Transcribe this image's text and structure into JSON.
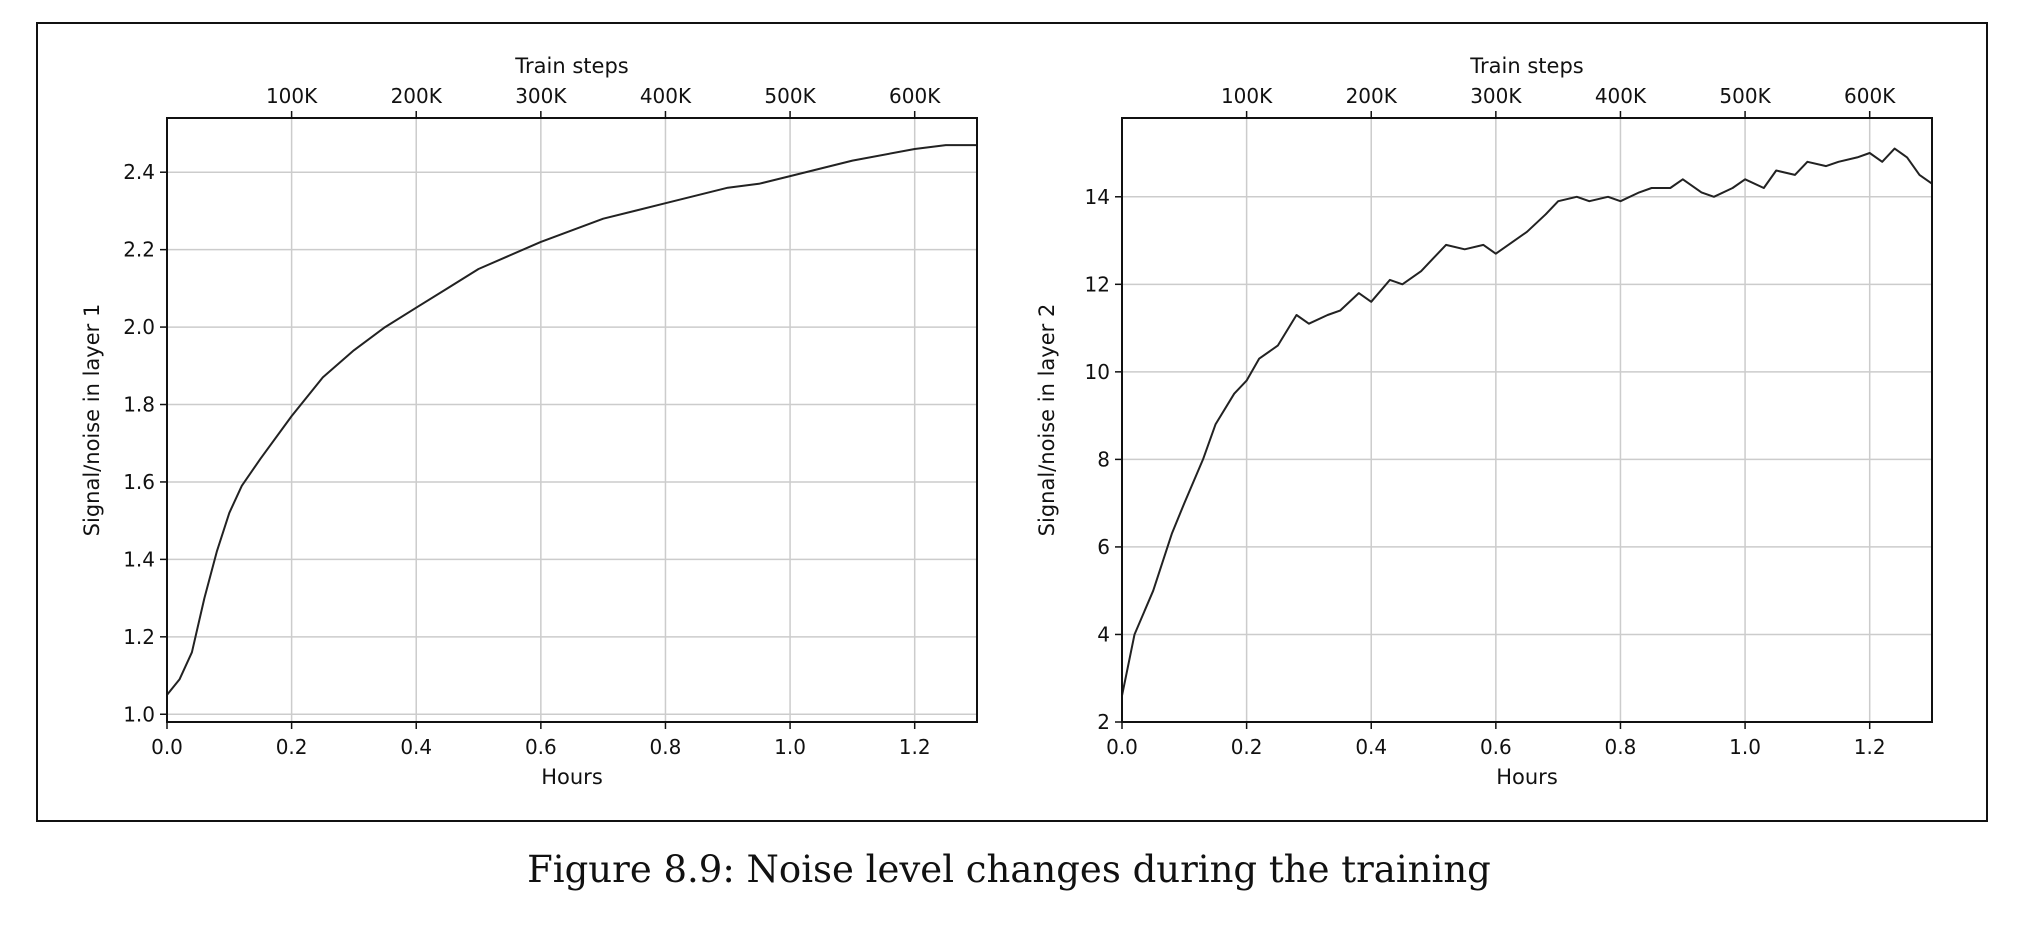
{
  "figure": {
    "caption": "Figure 8.9: Noise level changes during the training"
  },
  "chart_data": [
    {
      "type": "line",
      "xlabel": "Hours",
      "ylabel": "Signal/noise in layer 1",
      "top_xlabel": "Train steps",
      "xlim": [
        0.0,
        1.3
      ],
      "ylim": [
        0.98,
        2.54
      ],
      "grid": true,
      "xticks": [
        0.0,
        0.2,
        0.4,
        0.6,
        0.8,
        1.0,
        1.2
      ],
      "xtick_labels": [
        "0.0",
        "0.2",
        "0.4",
        "0.6",
        "0.8",
        "1.0",
        "1.2"
      ],
      "yticks": [
        1.0,
        1.2,
        1.4,
        1.6,
        1.8,
        2.0,
        2.2,
        2.4
      ],
      "ytick_labels": [
        "1.0",
        "1.2",
        "1.4",
        "1.6",
        "1.8",
        "2.0",
        "2.2",
        "2.4"
      ],
      "top_xticks": [
        0.2,
        0.4,
        0.6,
        0.8,
        1.0,
        1.2
      ],
      "top_xtick_labels": [
        "100K",
        "200K",
        "300K",
        "400K",
        "500K",
        "600K"
      ],
      "color": "#222222",
      "series": [
        {
          "x": [
            0.0,
            0.02,
            0.04,
            0.06,
            0.08,
            0.1,
            0.12,
            0.15,
            0.2,
            0.25,
            0.3,
            0.35,
            0.4,
            0.45,
            0.5,
            0.6,
            0.7,
            0.8,
            0.9,
            0.95,
            1.0,
            1.1,
            1.2,
            1.25,
            1.3
          ],
          "y": [
            1.05,
            1.09,
            1.16,
            1.3,
            1.42,
            1.52,
            1.59,
            1.66,
            1.77,
            1.87,
            1.94,
            2.0,
            2.05,
            2.1,
            2.15,
            2.22,
            2.28,
            2.32,
            2.36,
            2.37,
            2.39,
            2.43,
            2.46,
            2.47,
            2.47
          ]
        }
      ]
    },
    {
      "type": "line",
      "xlabel": "Hours",
      "ylabel": "Signal/noise in layer 2",
      "top_xlabel": "Train steps",
      "xlim": [
        0.0,
        1.3
      ],
      "ylim": [
        2.0,
        15.8
      ],
      "grid": true,
      "xticks": [
        0.0,
        0.2,
        0.4,
        0.6,
        0.8,
        1.0,
        1.2
      ],
      "xtick_labels": [
        "0.0",
        "0.2",
        "0.4",
        "0.6",
        "0.8",
        "1.0",
        "1.2"
      ],
      "yticks": [
        2,
        4,
        6,
        8,
        10,
        12,
        14
      ],
      "ytick_labels": [
        "2",
        "4",
        "6",
        "8",
        "10",
        "12",
        "14"
      ],
      "top_xticks": [
        0.2,
        0.4,
        0.6,
        0.8,
        1.0,
        1.2
      ],
      "top_xtick_labels": [
        "100K",
        "200K",
        "300K",
        "400K",
        "500K",
        "600K"
      ],
      "color": "#222222",
      "series": [
        {
          "x": [
            0.0,
            0.02,
            0.05,
            0.08,
            0.1,
            0.13,
            0.15,
            0.18,
            0.2,
            0.22,
            0.25,
            0.28,
            0.3,
            0.33,
            0.35,
            0.38,
            0.4,
            0.43,
            0.45,
            0.48,
            0.5,
            0.52,
            0.55,
            0.58,
            0.6,
            0.63,
            0.65,
            0.68,
            0.7,
            0.73,
            0.75,
            0.78,
            0.8,
            0.83,
            0.85,
            0.88,
            0.9,
            0.93,
            0.95,
            0.98,
            1.0,
            1.03,
            1.05,
            1.08,
            1.1,
            1.13,
            1.15,
            1.18,
            1.2,
            1.22,
            1.24,
            1.26,
            1.28,
            1.3
          ],
          "y": [
            2.6,
            4.0,
            5.0,
            6.3,
            7.0,
            8.0,
            8.8,
            9.5,
            9.8,
            10.3,
            10.6,
            11.3,
            11.1,
            11.3,
            11.4,
            11.8,
            11.6,
            12.1,
            12.0,
            12.3,
            12.6,
            12.9,
            12.8,
            12.9,
            12.7,
            13.0,
            13.2,
            13.6,
            13.9,
            14.0,
            13.9,
            14.0,
            13.9,
            14.1,
            14.2,
            14.2,
            14.4,
            14.1,
            14.0,
            14.2,
            14.4,
            14.2,
            14.6,
            14.5,
            14.8,
            14.7,
            14.8,
            14.9,
            15.0,
            14.8,
            15.1,
            14.9,
            14.5,
            14.3
          ]
        }
      ]
    }
  ]
}
